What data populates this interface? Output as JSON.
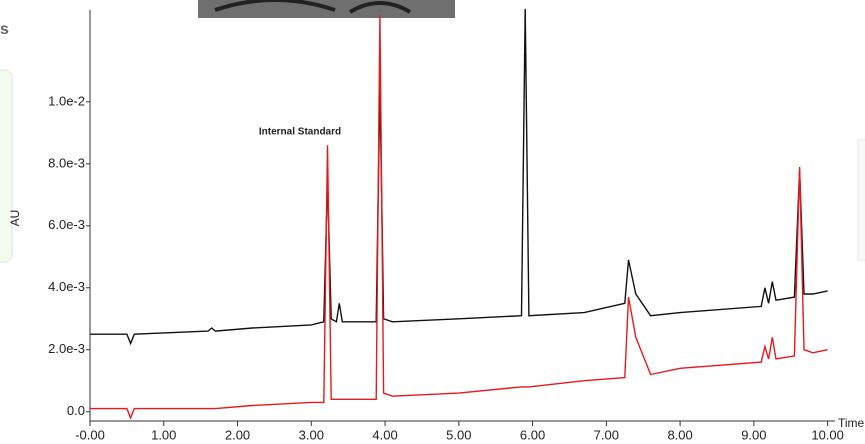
{
  "page": {
    "side_text": "s"
  },
  "chart_data": {
    "type": "line",
    "annotation": "Internal Standard",
    "xlabel": "Time",
    "ylabel": "AU",
    "x": [
      0,
      0.5,
      0.55,
      0.6,
      1.6,
      1.65,
      1.7,
      2.2,
      3.0,
      3.17,
      3.22,
      3.27,
      3.34,
      3.38,
      3.42,
      3.88,
      3.93,
      3.98,
      4.1,
      5.0,
      5.85,
      5.9,
      5.95,
      6.7,
      7.25,
      7.3,
      7.4,
      7.6,
      8.0,
      9.1,
      9.15,
      9.2,
      9.25,
      9.3,
      9.55,
      9.62,
      9.68,
      9.8,
      10.0
    ],
    "series": [
      {
        "color": "#111111",
        "values": [
          0.0025,
          0.0025,
          0.0022,
          0.0025,
          0.0026,
          0.0027,
          0.0026,
          0.0027,
          0.0028,
          0.0029,
          0.0075,
          0.003,
          0.0029,
          0.0035,
          0.0029,
          0.0029,
          0.0105,
          0.003,
          0.0029,
          0.003,
          0.0031,
          0.013,
          0.0031,
          0.0032,
          0.0035,
          0.0049,
          0.0038,
          0.0031,
          0.0032,
          0.0034,
          0.004,
          0.0035,
          0.0042,
          0.0036,
          0.0037,
          0.0078,
          0.0038,
          0.0038,
          0.0039
        ]
      },
      {
        "color": "#e8191c",
        "values": [
          0.0001,
          0.0001,
          -0.0002,
          0.0001,
          0.0001,
          0.0001,
          0.0001,
          0.0002,
          0.0003,
          0.0003,
          0.0086,
          0.0004,
          0.0004,
          0.0004,
          0.0004,
          0.0004,
          0.0128,
          0.0006,
          0.0005,
          0.0006,
          0.0008,
          0.0008,
          0.0008,
          0.001,
          0.0011,
          0.0037,
          0.0024,
          0.0012,
          0.0014,
          0.0016,
          0.0021,
          0.0017,
          0.0024,
          0.0017,
          0.0018,
          0.0079,
          0.002,
          0.0019,
          0.002
        ]
      }
    ],
    "xlim": [
      0,
      10.1
    ],
    "ylim": [
      -0.0003,
      0.0129
    ],
    "xticks": [
      {
        "value": 0,
        "label": "-0.00"
      },
      {
        "value": 1,
        "label": "1.00"
      },
      {
        "value": 2,
        "label": "2.00"
      },
      {
        "value": 3,
        "label": "3.00"
      },
      {
        "value": 4,
        "label": "4.00"
      },
      {
        "value": 5,
        "label": "5.00"
      },
      {
        "value": 6,
        "label": "6.00"
      },
      {
        "value": 7,
        "label": "7.00"
      },
      {
        "value": 8,
        "label": "8.00"
      },
      {
        "value": 9,
        "label": "9.00"
      },
      {
        "value": 10,
        "label": "10.00"
      }
    ],
    "yticks": [
      {
        "value": 0,
        "label": "0.0"
      },
      {
        "value": 0.002,
        "label": "2.0e-3"
      },
      {
        "value": 0.004,
        "label": "4.0e-3"
      },
      {
        "value": 0.006,
        "label": "6.0e-3"
      },
      {
        "value": 0.008,
        "label": "8.0e-3"
      },
      {
        "value": 0.01,
        "label": "1.0e-2"
      }
    ]
  }
}
